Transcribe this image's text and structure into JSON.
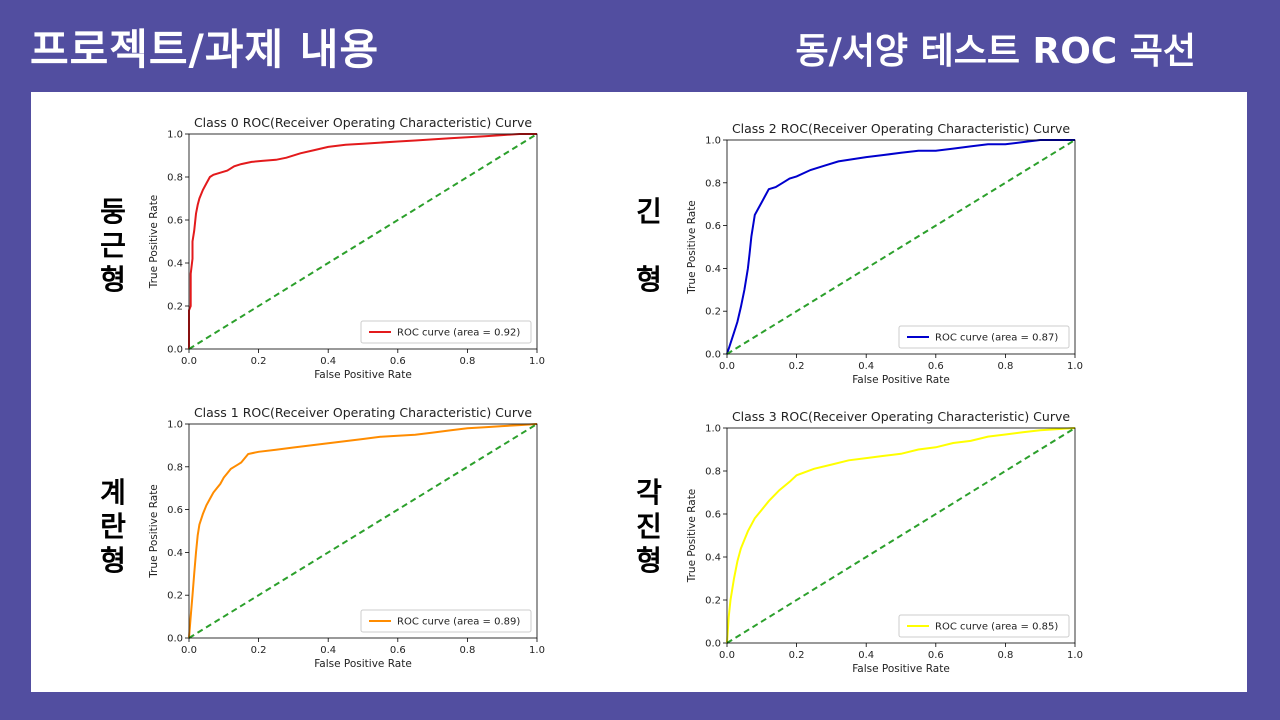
{
  "header": {
    "title": "프로젝트/과제 내용",
    "subtitle": "동/서양 테스트 ROC 곡선"
  },
  "shape_labels": [
    {
      "chars": [
        "둥",
        "근",
        "형"
      ]
    },
    {
      "chars": [
        "긴",
        "",
        "형"
      ]
    },
    {
      "chars": [
        "계",
        "란",
        "형"
      ]
    },
    {
      "chars": [
        "각",
        "진",
        "형"
      ]
    }
  ],
  "chart_data": [
    {
      "type": "line",
      "title": "Class 0 ROC(Receiver Operating Characteristic) Curve",
      "xlabel": "False Positive Rate",
      "ylabel": "True Positive Rate",
      "xlim": [
        0,
        1
      ],
      "ylim": [
        0,
        1
      ],
      "xticks": [
        "0.0",
        "0.2",
        "0.4",
        "0.6",
        "0.8",
        "1.0"
      ],
      "yticks": [
        "0.0",
        "0.2",
        "0.4",
        "0.6",
        "0.8",
        "1.0"
      ],
      "legend": "ROC curve (area = 0.92)",
      "color": "#e31a1c",
      "series": [
        {
          "name": "ROC curve (area = 0.92)",
          "x": [
            0,
            0,
            0.005,
            0.005,
            0.01,
            0.01,
            0.015,
            0.02,
            0.025,
            0.03,
            0.04,
            0.05,
            0.06,
            0.07,
            0.09,
            0.11,
            0.13,
            0.15,
            0.18,
            0.21,
            0.25,
            0.28,
            0.32,
            0.36,
            0.4,
            0.45,
            0.5,
            0.55,
            0.6,
            0.65,
            0.7,
            0.75,
            0.8,
            0.85,
            0.9,
            0.95,
            1.0
          ],
          "y": [
            0,
            0.18,
            0.2,
            0.35,
            0.42,
            0.5,
            0.55,
            0.63,
            0.67,
            0.7,
            0.74,
            0.77,
            0.8,
            0.81,
            0.82,
            0.83,
            0.85,
            0.86,
            0.87,
            0.875,
            0.88,
            0.89,
            0.91,
            0.925,
            0.94,
            0.95,
            0.955,
            0.96,
            0.965,
            0.97,
            0.975,
            0.98,
            0.985,
            0.99,
            0.995,
            1.0,
            1.0
          ]
        },
        {
          "name": "random",
          "x": [
            0,
            1
          ],
          "y": [
            0,
            1
          ],
          "color": "#2ca02c",
          "dashed": true
        }
      ]
    },
    {
      "type": "line",
      "title": "Class 2 ROC(Receiver Operating Characteristic) Curve",
      "xlabel": "False Positive Rate",
      "ylabel": "True Positive Rate",
      "xlim": [
        0,
        1
      ],
      "ylim": [
        0,
        1
      ],
      "xticks": [
        "0.0",
        "0.2",
        "0.4",
        "0.6",
        "0.8",
        "1.0"
      ],
      "yticks": [
        "0.0",
        "0.2",
        "0.4",
        "0.6",
        "0.8",
        "1.0"
      ],
      "legend": "ROC curve (area = 0.87)",
      "color": "#0000cd",
      "series": [
        {
          "name": "ROC curve (area = 0.87)",
          "x": [
            0,
            0.01,
            0.02,
            0.03,
            0.04,
            0.05,
            0.06,
            0.065,
            0.07,
            0.075,
            0.08,
            0.09,
            0.1,
            0.11,
            0.12,
            0.14,
            0.16,
            0.18,
            0.2,
            0.24,
            0.28,
            0.32,
            0.36,
            0.4,
            0.45,
            0.5,
            0.55,
            0.6,
            0.65,
            0.7,
            0.75,
            0.8,
            0.85,
            0.9,
            1.0
          ],
          "y": [
            0,
            0.05,
            0.1,
            0.15,
            0.22,
            0.3,
            0.4,
            0.47,
            0.55,
            0.6,
            0.65,
            0.68,
            0.71,
            0.74,
            0.77,
            0.78,
            0.8,
            0.82,
            0.83,
            0.86,
            0.88,
            0.9,
            0.91,
            0.92,
            0.93,
            0.94,
            0.95,
            0.95,
            0.96,
            0.97,
            0.98,
            0.98,
            0.99,
            1.0,
            1.0
          ]
        },
        {
          "name": "random",
          "x": [
            0,
            1
          ],
          "y": [
            0,
            1
          ],
          "color": "#2ca02c",
          "dashed": true
        }
      ]
    },
    {
      "type": "line",
      "title": "Class 1 ROC(Receiver Operating Characteristic) Curve",
      "xlabel": "False Positive Rate",
      "ylabel": "True Positive Rate",
      "xlim": [
        0,
        1
      ],
      "ylim": [
        0,
        1
      ],
      "xticks": [
        "0.0",
        "0.2",
        "0.4",
        "0.6",
        "0.8",
        "1.0"
      ],
      "yticks": [
        "0.0",
        "0.2",
        "0.4",
        "0.6",
        "0.8",
        "1.0"
      ],
      "legend": "ROC curve (area = 0.89)",
      "color": "#ff8c00",
      "series": [
        {
          "name": "ROC curve (area = 0.89)",
          "x": [
            0,
            0.005,
            0.01,
            0.015,
            0.02,
            0.025,
            0.03,
            0.04,
            0.05,
            0.06,
            0.07,
            0.08,
            0.09,
            0.1,
            0.11,
            0.12,
            0.13,
            0.14,
            0.15,
            0.16,
            0.17,
            0.2,
            0.25,
            0.3,
            0.35,
            0.4,
            0.45,
            0.5,
            0.55,
            0.6,
            0.65,
            0.7,
            0.75,
            0.8,
            0.85,
            0.9,
            0.95,
            1.0
          ],
          "y": [
            0,
            0.1,
            0.2,
            0.3,
            0.4,
            0.48,
            0.53,
            0.58,
            0.62,
            0.65,
            0.68,
            0.7,
            0.72,
            0.75,
            0.77,
            0.79,
            0.8,
            0.81,
            0.82,
            0.84,
            0.86,
            0.87,
            0.88,
            0.89,
            0.9,
            0.91,
            0.92,
            0.93,
            0.94,
            0.945,
            0.95,
            0.96,
            0.97,
            0.98,
            0.985,
            0.99,
            0.995,
            1.0
          ]
        },
        {
          "name": "random",
          "x": [
            0,
            1
          ],
          "y": [
            0,
            1
          ],
          "color": "#2ca02c",
          "dashed": true
        }
      ]
    },
    {
      "type": "line",
      "title": "Class 3 ROC(Receiver Operating Characteristic) Curve",
      "xlabel": "False Positive Rate",
      "ylabel": "True Positive Rate",
      "xlim": [
        0,
        1
      ],
      "ylim": [
        0,
        1
      ],
      "xticks": [
        "0.0",
        "0.2",
        "0.4",
        "0.6",
        "0.8",
        "1.0"
      ],
      "yticks": [
        "0.0",
        "0.2",
        "0.4",
        "0.6",
        "0.8",
        "1.0"
      ],
      "legend": "ROC curve (area = 0.85)",
      "color": "#ffff00",
      "series": [
        {
          "name": "ROC curve (area = 0.85)",
          "x": [
            0,
            0.005,
            0.01,
            0.02,
            0.03,
            0.04,
            0.05,
            0.06,
            0.08,
            0.1,
            0.12,
            0.15,
            0.18,
            0.2,
            0.25,
            0.3,
            0.35,
            0.4,
            0.45,
            0.5,
            0.55,
            0.6,
            0.65,
            0.7,
            0.75,
            0.8,
            0.85,
            0.9,
            0.95,
            1.0
          ],
          "y": [
            0,
            0.12,
            0.2,
            0.3,
            0.38,
            0.44,
            0.48,
            0.52,
            0.58,
            0.62,
            0.66,
            0.71,
            0.75,
            0.78,
            0.81,
            0.83,
            0.85,
            0.86,
            0.87,
            0.88,
            0.9,
            0.91,
            0.93,
            0.94,
            0.96,
            0.97,
            0.98,
            0.99,
            0.995,
            1.0
          ]
        },
        {
          "name": "random",
          "x": [
            0,
            1
          ],
          "y": [
            0,
            1
          ],
          "color": "#2ca02c",
          "dashed": true
        }
      ]
    }
  ]
}
